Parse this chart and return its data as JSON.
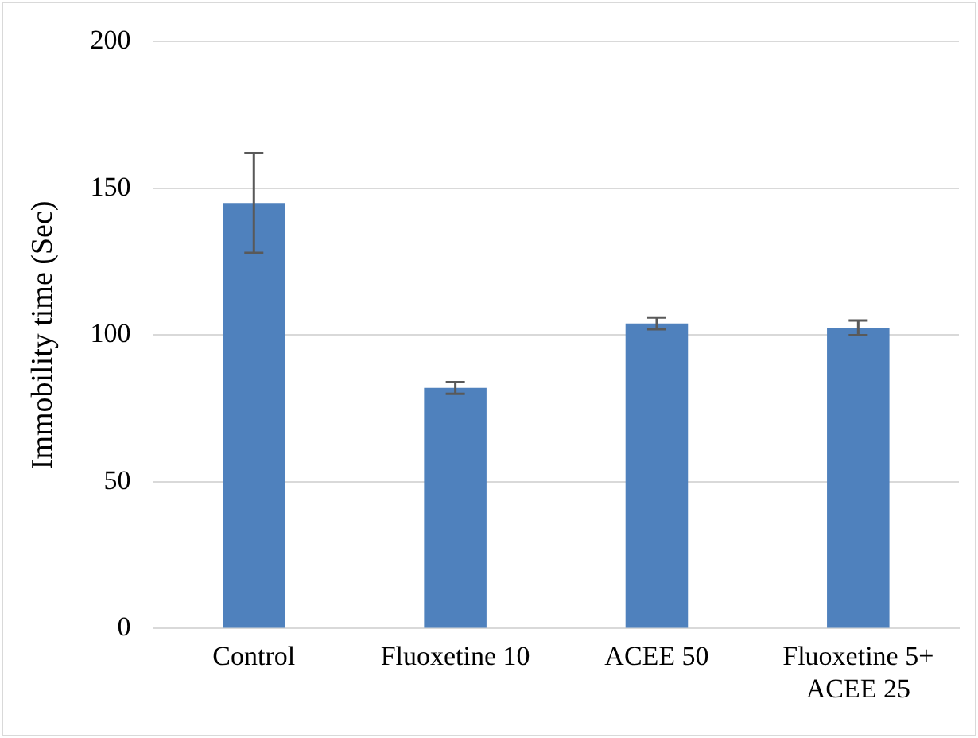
{
  "chart_data": {
    "type": "bar",
    "ylabel": "Immobility time (Sec)",
    "categories": [
      "Control",
      "Fluoxetine 10",
      "ACEE 50",
      "Fluoxetine 5+\nACEE 25"
    ],
    "values": [
      145,
      82,
      104,
      102.5
    ],
    "errors": [
      17,
      2,
      2,
      2.5
    ],
    "color": "#4f81bd",
    "ylim": [
      0,
      200
    ],
    "yticks": [
      0,
      50,
      100,
      150,
      200
    ],
    "grid": "y"
  }
}
